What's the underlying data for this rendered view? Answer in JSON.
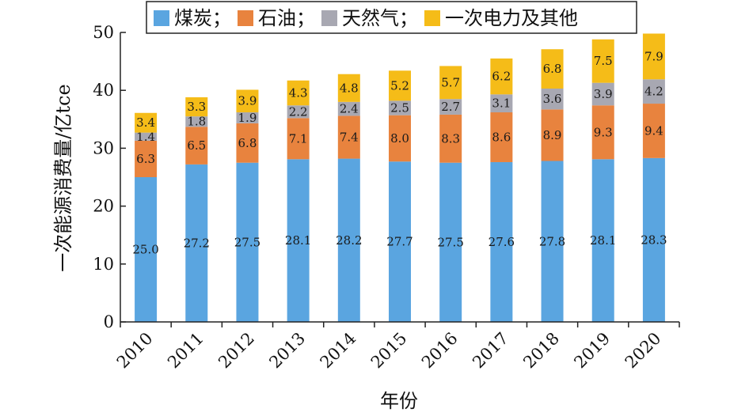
{
  "chart_data": {
    "type": "bar",
    "stacked": true,
    "xlabel": "年份",
    "ylabel": "一次能源消费量/亿tce",
    "ylim": [
      0,
      50
    ],
    "yticks": [
      "0",
      "10",
      "20",
      "30",
      "40",
      "50"
    ],
    "legend_position": "top",
    "legend_separator": "；",
    "categories": [
      "2010",
      "2011",
      "2012",
      "2013",
      "2014",
      "2015",
      "2016",
      "2017",
      "2018",
      "2019",
      "2020"
    ],
    "series": [
      {
        "name": "煤炭",
        "color": "#5aa5e0",
        "values": [
          25.0,
          27.2,
          27.5,
          28.1,
          28.2,
          27.7,
          27.5,
          27.6,
          27.8,
          28.1,
          28.3
        ],
        "labels": [
          "25.0",
          "27.2",
          "27.5",
          "28.1",
          "28.2",
          "27.7",
          "27.5",
          "27.6",
          "27.8",
          "28.1",
          "28.3"
        ]
      },
      {
        "name": "石油",
        "color": "#e8833e",
        "values": [
          6.3,
          6.5,
          6.8,
          7.1,
          7.4,
          8.0,
          8.3,
          8.6,
          8.9,
          9.3,
          9.4
        ],
        "labels": [
          "6.3",
          "6.5",
          "6.8",
          "7.1",
          "7.4",
          "8.0",
          "8.3",
          "8.6",
          "8.9",
          "9.3",
          "9.4"
        ]
      },
      {
        "name": "天然气",
        "color": "#a8a8b2",
        "values": [
          1.4,
          1.8,
          1.9,
          2.2,
          2.4,
          2.5,
          2.7,
          3.1,
          3.6,
          3.9,
          4.2
        ],
        "labels": [
          "1.4",
          "1.8",
          "1.9",
          "2.2",
          "2.4",
          "2.5",
          "2.7",
          "3.1",
          "3.6",
          "3.9",
          "4.2"
        ]
      },
      {
        "name": "一次电力及其他",
        "color": "#f5bc18",
        "values": [
          3.4,
          3.3,
          3.9,
          4.3,
          4.8,
          5.2,
          5.7,
          6.2,
          6.8,
          7.5,
          7.9
        ],
        "labels": [
          "3.4",
          "3.3",
          "3.9",
          "4.3",
          "4.8",
          "5.2",
          "5.7",
          "6.2",
          "6.8",
          "7.5",
          "7.9"
        ]
      }
    ]
  }
}
